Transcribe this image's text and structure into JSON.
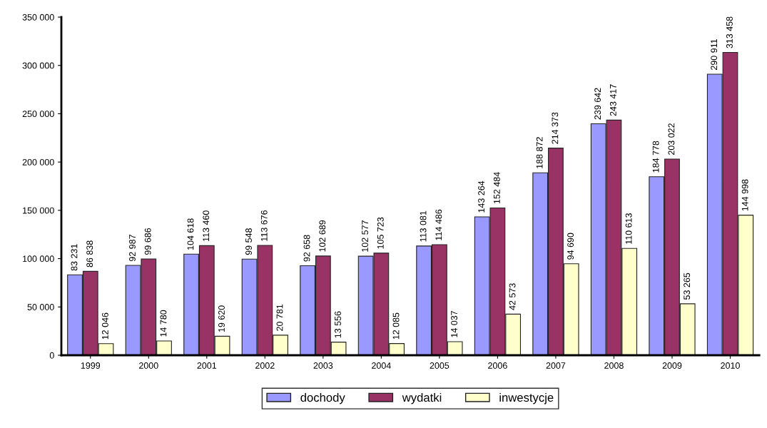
{
  "chart_data": {
    "type": "bar",
    "categories": [
      "1999",
      "2000",
      "2001",
      "2002",
      "2003",
      "2004",
      "2005",
      "2006",
      "2007",
      "2008",
      "2009",
      "2010"
    ],
    "series": [
      {
        "name": "dochody",
        "color": "#9999ff",
        "values": [
          83231,
          92987,
          104618,
          99548,
          92658,
          102577,
          113081,
          143264,
          188872,
          239642,
          184778,
          290911
        ],
        "value_labels": [
          "83 231",
          "92 987",
          "104 618",
          "99 548",
          "92 658",
          "102 577",
          "113 081",
          "143 264",
          "188 872",
          "239 642",
          "184 778",
          "290 911"
        ]
      },
      {
        "name": "wydatki",
        "color": "#993366",
        "values": [
          86838,
          99686,
          113460,
          113676,
          102689,
          105723,
          114486,
          152484,
          214373,
          243417,
          203022,
          313458
        ],
        "value_labels": [
          "86 838",
          "99 686",
          "113 460",
          "113 676",
          "102 689",
          "105 723",
          "114 486",
          "152 484",
          "214 373",
          "243 417",
          "203 022",
          "313 458"
        ]
      },
      {
        "name": "inwestycje",
        "color": "#ffffcc",
        "values": [
          12046,
          14780,
          19620,
          20781,
          13556,
          12085,
          14037,
          42573,
          94690,
          110613,
          53265,
          144998
        ],
        "value_labels": [
          "12 046",
          "14 780",
          "19 620",
          "20 781",
          "13 556",
          "12 085",
          "14 037",
          "42 573",
          "94 690",
          "110 613",
          "53 265",
          "144 998"
        ]
      }
    ],
    "ylim": [
      0,
      350000
    ],
    "yticks": [
      {
        "value": 0,
        "label": "0"
      },
      {
        "value": 50000,
        "label": "50 000"
      },
      {
        "value": 100000,
        "label": "100 000"
      },
      {
        "value": 150000,
        "label": "150 000"
      },
      {
        "value": 200000,
        "label": "200 000"
      },
      {
        "value": 250000,
        "label": "250 000"
      },
      {
        "value": 300000,
        "label": "300 000"
      },
      {
        "value": 350000,
        "label": "350 000"
      }
    ],
    "grid": false,
    "legend": "bottom"
  }
}
